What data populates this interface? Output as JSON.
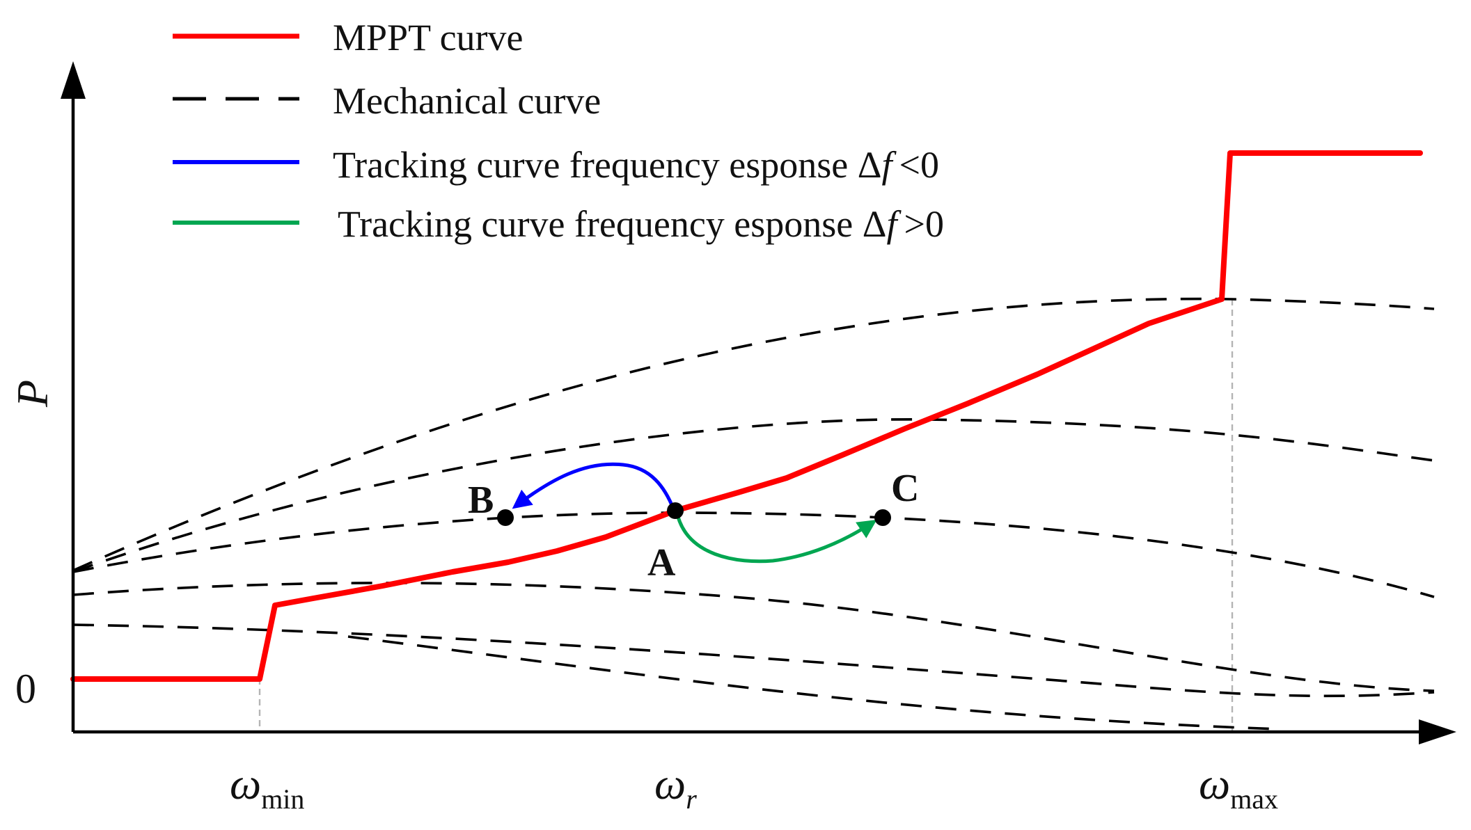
{
  "legend": {
    "mppt": "MPPT curve",
    "mechanical": "Mechanical curve",
    "tracking_neg_prefix": "Tracking curve frequency esponse Δ",
    "tracking_pos_prefix": "Tracking curve frequency esponse Δ",
    "f_symbol": "f",
    "neg_suffix": "<0",
    "pos_suffix": ">0"
  },
  "axes": {
    "y_label": "P",
    "y_zero": "0",
    "x_symbol": "ω",
    "x_min_sub": "min",
    "x_r_sub": "r",
    "x_max_sub": "max"
  },
  "points": {
    "a": "A",
    "b": "B",
    "c": "C"
  },
  "colors": {
    "mppt": "#ff0000",
    "mechanical": "#000000",
    "tracking_neg": "#0000ff",
    "tracking_pos": "#00a651"
  }
}
